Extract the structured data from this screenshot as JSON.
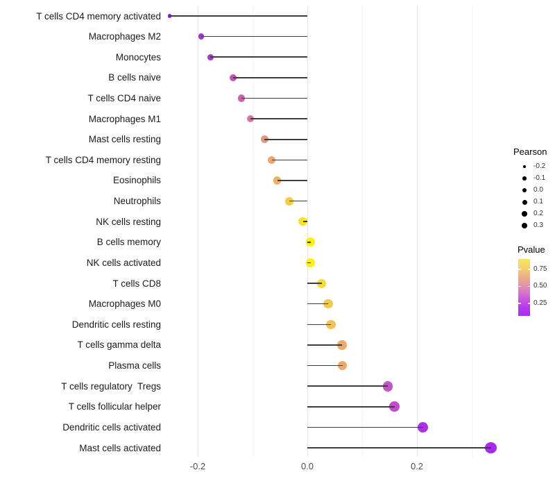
{
  "chart_data": {
    "type": "scatter",
    "subtype": "lollipop-horizontal",
    "title": "",
    "xlabel": "",
    "ylabel": "",
    "x_axis": {
      "major_ticks": [
        {
          "label": "-0.2",
          "value": -0.2
        },
        {
          "label": "0.0",
          "value": 0.0
        },
        {
          "label": "0.2",
          "value": 0.2
        }
      ],
      "minor_tick_values": [
        -0.1,
        0.1,
        0.3
      ],
      "range": [
        -0.275,
        0.355
      ],
      "grid": "vertical-only"
    },
    "points": [
      {
        "label": "T cells CD4 memory activated",
        "pearson": -0.251,
        "color": "#7c21c9"
      },
      {
        "label": "Macrophages M2",
        "pearson": -0.194,
        "color": "#a338d0"
      },
      {
        "label": "Monocytes",
        "pearson": -0.177,
        "color": "#a93bcb"
      },
      {
        "label": "B cells naive",
        "pearson": -0.135,
        "color": "#c251be"
      },
      {
        "label": "T cells CD4 naive",
        "pearson": -0.12,
        "color": "#cb5fb0"
      },
      {
        "label": "Macrophages M1",
        "pearson": -0.104,
        "color": "#d674a2"
      },
      {
        "label": "Mast cells resting",
        "pearson": -0.078,
        "color": "#e2987f"
      },
      {
        "label": "T cells CD4 memory resting",
        "pearson": -0.065,
        "color": "#eba76e"
      },
      {
        "label": "Eosinophils",
        "pearson": -0.055,
        "color": "#efb163"
      },
      {
        "label": "Neutrophils",
        "pearson": -0.033,
        "color": "#f4cb45"
      },
      {
        "label": "NK cells resting",
        "pearson": -0.008,
        "color": "#f8e32b"
      },
      {
        "label": "B cells memory",
        "pearson": 0.006,
        "color": "#faf10e"
      },
      {
        "label": "NK cells activated",
        "pearson": 0.006,
        "color": "#faf10e"
      },
      {
        "label": "T cells CD8",
        "pearson": 0.026,
        "color": "#f7da35"
      },
      {
        "label": "Macrophages M0",
        "pearson": 0.038,
        "color": "#f3c94f"
      },
      {
        "label": "Dendritic cells resting",
        "pearson": 0.043,
        "color": "#f2c25b"
      },
      {
        "label": "T cells gamma delta",
        "pearson": 0.063,
        "color": "#eca96b"
      },
      {
        "label": "Plasma cells",
        "pearson": 0.064,
        "color": "#eca96b"
      },
      {
        "label": "T cells regulatory  Tregs",
        "pearson": 0.147,
        "color": "#c553c8"
      },
      {
        "label": "T cells follicular helper",
        "pearson": 0.159,
        "color": "#c24bcd"
      },
      {
        "label": "Dendritic cells activated",
        "pearson": 0.211,
        "color": "#ac31e3"
      },
      {
        "label": "Mast cells activated",
        "pearson": 0.335,
        "color": "#a829ef"
      }
    ],
    "legend_size": {
      "title": "Pearson",
      "dot_color": "#000000",
      "entries": [
        {
          "label": "-0.2",
          "value": -0.2
        },
        {
          "label": "-0.1",
          "value": -0.1
        },
        {
          "label": "0.0",
          "value": 0.0
        },
        {
          "label": "0.1",
          "value": 0.1
        },
        {
          "label": "0.2",
          "value": 0.2
        },
        {
          "label": "0.3",
          "value": 0.3
        }
      ]
    },
    "legend_color": {
      "title": "Pvalue",
      "tick_labels": [
        "0.75",
        "0.50",
        "0.25"
      ],
      "gradient_top_to_bottom": [
        "#f9e74f",
        "#f6d46a",
        "#edb383",
        "#e39aa4",
        "#d97bc4",
        "#c857de",
        "#b637ee",
        "#af2bf5"
      ]
    },
    "colors": {
      "stem": "#3d3d3d",
      "grid_major": "#e5e5e5",
      "grid_minor": "#f3f3f3",
      "tick_label": "#4d4d4d",
      "category_label": "#1a1a1a",
      "background": "#ffffff"
    }
  }
}
